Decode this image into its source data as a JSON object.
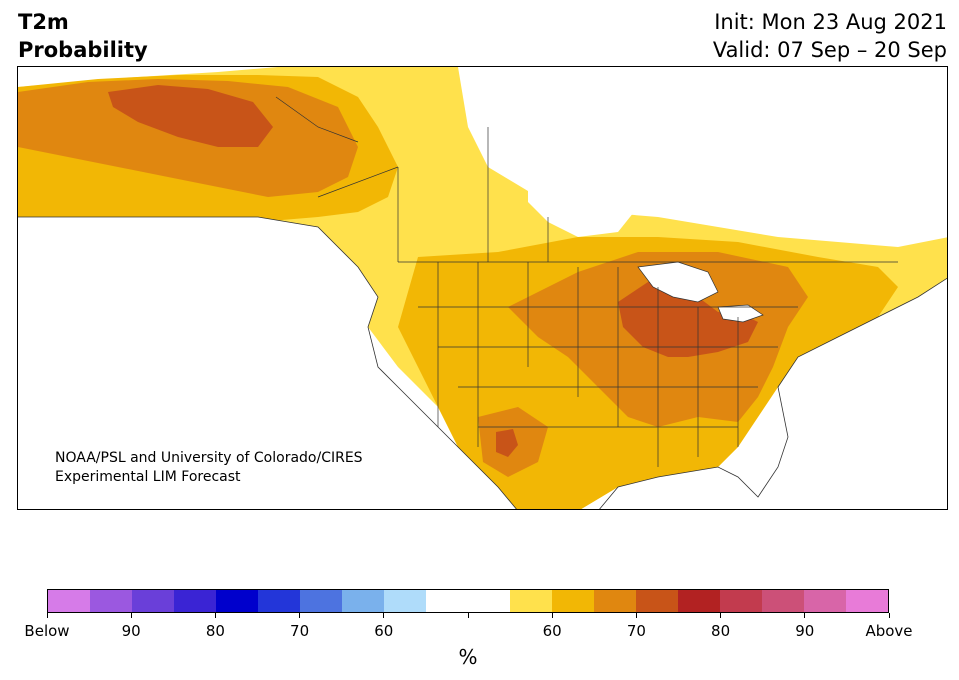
{
  "header": {
    "title_line1": "T2m",
    "title_line2": "Probability",
    "init_text": "Init: Mon 23 Aug 2021",
    "valid_text": "Valid: 07 Sep – 20 Sep"
  },
  "credit": {
    "line1": "NOAA/PSL and University of Colorado/CIRES",
    "line2": "Experimental LIM Forecast"
  },
  "colorbar": {
    "unit": "%",
    "colors": [
      "#d67be8",
      "#9b58e0",
      "#6a3fd9",
      "#3a24d4",
      "#0000cc",
      "#2336d9",
      "#4d73e0",
      "#7ab1ec",
      "#afdcfa",
      "#ffffff",
      "#ffffff",
      "#ffe14c",
      "#f2b705",
      "#e08710",
      "#c85418",
      "#b22222",
      "#c23b4e",
      "#cc5078",
      "#d865a8",
      "#e87bd8"
    ],
    "tick_labels": [
      "Below",
      "90",
      "80",
      "70",
      "60",
      "",
      "60",
      "70",
      "80",
      "90",
      "Above"
    ]
  },
  "map": {
    "palette": {
      "land_light": "#ffffff",
      "p60": "#ffe14c",
      "p70": "#f2b705",
      "p80": "#e08710",
      "p90": "#c85418",
      "ocean": "#ffffff",
      "border": "#333333"
    }
  }
}
